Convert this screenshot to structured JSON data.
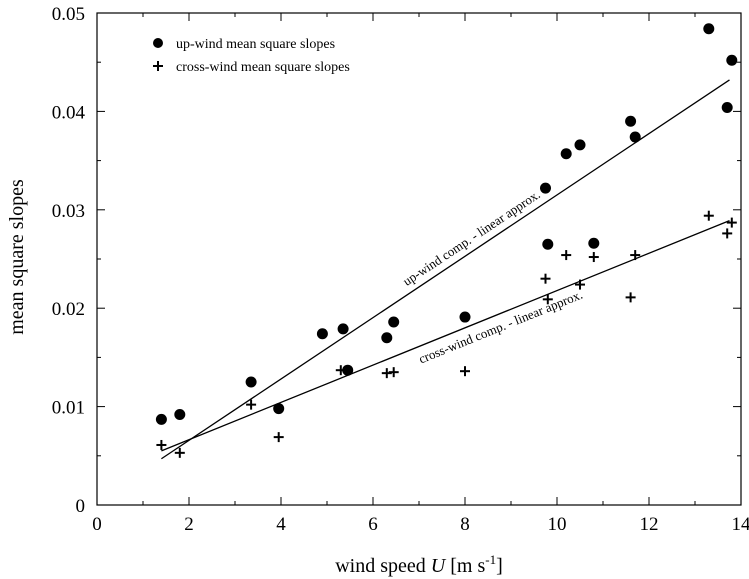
{
  "chart_data": {
    "type": "scatter",
    "xlabel": {
      "prefix": "wind speed ",
      "italic": "U",
      "unit": " [m s",
      "sup": "-1",
      "close": "]"
    },
    "ylabel": "mean square slopes",
    "xlim": [
      0,
      14
    ],
    "ylim": [
      0,
      0.05
    ],
    "x_ticks": [
      0,
      2,
      4,
      6,
      8,
      10,
      12,
      14
    ],
    "x_tick_labels": [
      "0",
      "2",
      "4",
      "6",
      "8",
      "10",
      "12",
      "14"
    ],
    "x_minor_step": 1,
    "y_ticks": [
      0,
      0.01,
      0.02,
      0.03,
      0.04,
      0.05
    ],
    "y_tick_labels": [
      "0",
      "0.01",
      "0.02",
      "0.03",
      "0.04",
      "0.05"
    ],
    "y_minor_step": 0.005,
    "grid": false,
    "legend_position": "top-left",
    "series": [
      {
        "name": "up-wind mean square slopes",
        "marker": "circle",
        "color": "#000000",
        "points": [
          [
            1.4,
            0.0087
          ],
          [
            1.8,
            0.0092
          ],
          [
            3.35,
            0.0125
          ],
          [
            3.95,
            0.0098
          ],
          [
            4.9,
            0.0174
          ],
          [
            5.35,
            0.0179
          ],
          [
            5.45,
            0.0137
          ],
          [
            6.3,
            0.017
          ],
          [
            6.45,
            0.0186
          ],
          [
            8.0,
            0.0191
          ],
          [
            9.75,
            0.0322
          ],
          [
            9.8,
            0.0265
          ],
          [
            10.2,
            0.0357
          ],
          [
            10.5,
            0.0366
          ],
          [
            10.8,
            0.0266
          ],
          [
            11.6,
            0.039
          ],
          [
            11.7,
            0.0374
          ],
          [
            13.3,
            0.0484
          ],
          [
            13.7,
            0.0404
          ],
          [
            13.8,
            0.0452
          ]
        ]
      },
      {
        "name": "cross-wind mean square slopes",
        "marker": "plus",
        "color": "#000000",
        "points": [
          [
            1.4,
            0.0061
          ],
          [
            1.8,
            0.0053
          ],
          [
            3.35,
            0.0102
          ],
          [
            3.95,
            0.0069
          ],
          [
            5.3,
            0.0137
          ],
          [
            6.3,
            0.0134
          ],
          [
            6.45,
            0.0135
          ],
          [
            8.0,
            0.0136
          ],
          [
            9.75,
            0.023
          ],
          [
            9.8,
            0.0209
          ],
          [
            10.2,
            0.0254
          ],
          [
            10.5,
            0.0224
          ],
          [
            10.8,
            0.0252
          ],
          [
            11.6,
            0.0211
          ],
          [
            11.7,
            0.0254
          ],
          [
            13.3,
            0.0294
          ],
          [
            13.7,
            0.0276
          ],
          [
            13.8,
            0.0287
          ]
        ]
      }
    ],
    "fit_lines": [
      {
        "label": "up-wind comp. - linear approx.",
        "from": [
          1.4,
          0.0047
        ],
        "to": [
          13.75,
          0.0432
        ]
      },
      {
        "label": "cross-wind comp. - linear approx.",
        "from": [
          1.4,
          0.0055
        ],
        "to": [
          13.75,
          0.0289
        ]
      }
    ]
  }
}
